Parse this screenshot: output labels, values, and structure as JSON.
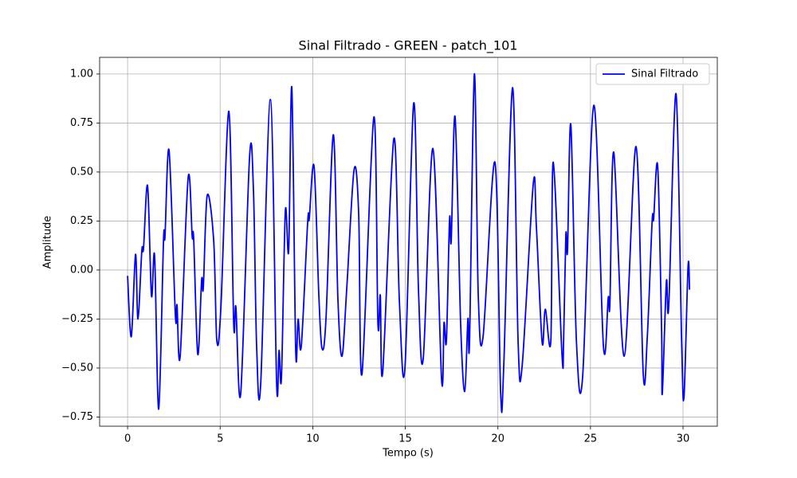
{
  "chart_data": {
    "type": "line",
    "title": "Sinal Filtrado - GREEN - patch_101",
    "xlabel": "Tempo (s)",
    "ylabel": "Amplitude",
    "x": [
      0,
      0.2,
      0.43,
      0.56,
      0.77,
      0.86,
      1.08,
      1.29,
      1.46,
      1.68,
      1.94,
      2.02,
      2.24,
      2.58,
      2.67,
      2.84,
      3.27,
      3.49,
      3.57,
      3.79,
      4.0,
      4.09,
      4.3,
      4.65,
      4.82,
      5.04,
      5.47,
      5.73,
      5.85,
      6.11,
      6.59,
      6.8,
      6.97,
      7.19,
      7.71,
      8.05,
      8.18,
      8.31,
      8.52,
      8.7,
      8.87,
      9.08,
      9.21,
      9.38,
      9.73,
      9.81,
      10.07,
      10.33,
      10.5,
      10.72,
      11.11,
      11.36,
      11.58,
      11.84,
      12.23,
      12.48,
      12.66,
      13.3,
      13.52,
      13.65,
      13.78,
      14.38,
      14.68,
      14.98,
      15.45,
      15.71,
      15.97,
      16.49,
      16.96,
      17.09,
      17.22,
      17.39,
      17.48,
      17.69,
      17.99,
      18.21,
      18.38,
      18.47,
      18.73,
      18.94,
      19.2,
      19.84,
      20.15,
      20.32,
      20.79,
      21.09,
      21.31,
      21.91,
      22.08,
      22.39,
      22.56,
      22.86,
      22.99,
      23.46,
      23.55,
      23.67,
      23.76,
      23.94,
      24.24,
      24.58,
      25.18,
      25.7,
      25.96,
      26.05,
      26.26,
      26.82,
      27.46,
      27.85,
      28.07,
      28.33,
      28.41,
      28.63,
      28.84,
      28.88,
      29.1,
      29.23,
      29.62,
      29.92,
      30.05,
      30.27,
      30.35
    ],
    "series": [
      {
        "name": "Sinal Filtrado",
        "color": "#0000ff",
        "values": [
          -0.03,
          -0.34,
          0.08,
          -0.25,
          0.1,
          0.11,
          0.43,
          -0.13,
          0.07,
          -0.71,
          0.15,
          0.17,
          0.61,
          -0.23,
          -0.18,
          -0.44,
          0.47,
          0.17,
          0.16,
          -0.43,
          -0.05,
          -0.09,
          0.38,
          0.15,
          -0.36,
          -0.19,
          0.81,
          -0.27,
          -0.19,
          -0.63,
          0.58,
          0.4,
          -0.39,
          -0.58,
          0.87,
          -0.58,
          -0.41,
          -0.55,
          0.3,
          0.1,
          0.93,
          -0.41,
          -0.25,
          -0.39,
          0.25,
          0.26,
          0.53,
          -0.13,
          -0.4,
          -0.24,
          0.69,
          -0.15,
          -0.44,
          -0.09,
          0.51,
          0.29,
          -0.53,
          0.78,
          -0.27,
          -0.13,
          -0.52,
          0.67,
          -0.16,
          -0.5,
          0.85,
          -0.1,
          -0.45,
          0.62,
          -0.56,
          -0.27,
          -0.36,
          0.26,
          0.15,
          0.78,
          -0.28,
          -0.62,
          -0.25,
          -0.36,
          1.0,
          -0.13,
          -0.34,
          0.55,
          -0.63,
          -0.48,
          0.93,
          -0.36,
          -0.49,
          0.44,
          0.22,
          -0.37,
          -0.2,
          -0.36,
          0.55,
          -0.43,
          -0.36,
          0.18,
          0.1,
          0.74,
          -0.36,
          -0.54,
          0.84,
          -0.39,
          -0.14,
          -0.17,
          0.6,
          -0.44,
          0.63,
          -0.53,
          -0.34,
          0.25,
          0.26,
          0.53,
          -0.3,
          -0.63,
          -0.06,
          -0.18,
          0.9,
          -0.35,
          -0.65,
          0.02,
          -0.1
        ]
      }
    ],
    "xlim": [
      -1.51,
      31.85
    ],
    "ylim": [
      -0.797,
      1.085
    ],
    "xticks": [
      0,
      5,
      10,
      15,
      20,
      25,
      30
    ],
    "yticks": [
      {
        "value": -0.75,
        "label": "−0.75"
      },
      {
        "value": -0.5,
        "label": "−0.50"
      },
      {
        "value": -0.25,
        "label": "−0.25"
      },
      {
        "value": 0,
        "label": "0.00"
      },
      {
        "value": 0.25,
        "label": "0.25"
      },
      {
        "value": 0.5,
        "label": "0.50"
      },
      {
        "value": 0.75,
        "label": "0.75"
      },
      {
        "value": 1.0,
        "label": "1.00"
      }
    ],
    "grid": true,
    "legend": "upper right"
  }
}
